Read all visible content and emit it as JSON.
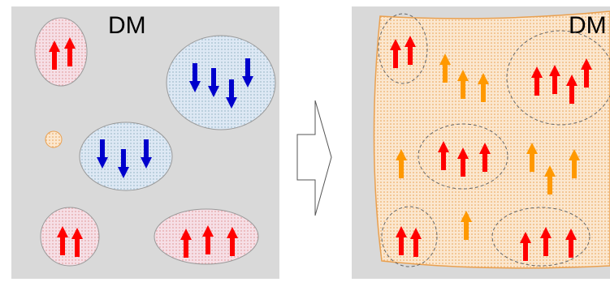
{
  "panels": [
    {
      "label": "DM"
    },
    {
      "label": "DM"
    }
  ]
}
